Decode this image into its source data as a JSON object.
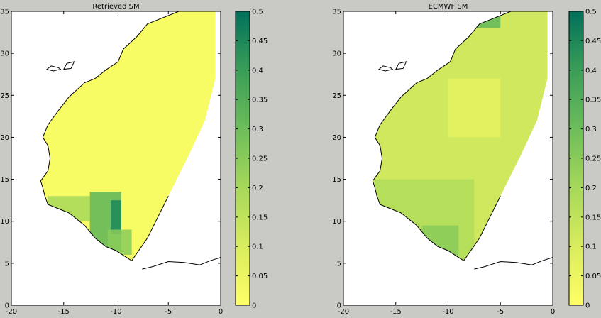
{
  "figure": {
    "background": "#c9cac5",
    "colormap": [
      "#ffff66",
      "#d9ec5e",
      "#a6d85a",
      "#6dbd5a",
      "#3a9e58",
      "#00705a"
    ]
  },
  "chart_data": [
    {
      "type": "heatmap",
      "title": "Retrieved SM",
      "xlim": [
        -20,
        0
      ],
      "ylim": [
        0,
        35
      ],
      "xticks": [
        -20,
        -15,
        -10,
        -5,
        0
      ],
      "yticks": [
        0,
        5,
        10,
        15,
        20,
        25,
        30,
        35
      ],
      "colorbar": {
        "min": 0,
        "max": 0.5,
        "ticks": [
          0,
          0.05,
          0.1,
          0.15,
          0.2,
          0.25,
          0.3,
          0.35,
          0.4,
          0.45,
          0.5
        ]
      },
      "coverage_value": 0.02,
      "regions": [
        {
          "lon": [
            -12.5,
            -9.5
          ],
          "lat": [
            6.5,
            13.5
          ],
          "value": 0.33
        },
        {
          "lon": [
            -16.5,
            -12.5
          ],
          "lat": [
            10,
            13
          ],
          "value": 0.2
        },
        {
          "lon": [
            -10.5,
            -9.5
          ],
          "lat": [
            8.5,
            12.5
          ],
          "value": 0.45
        },
        {
          "lon": [
            -10.8,
            -8.5
          ],
          "lat": [
            6,
            9
          ],
          "value": 0.25
        }
      ]
    },
    {
      "type": "heatmap",
      "title": "ECMWF SM",
      "xlim": [
        -20,
        0
      ],
      "ylim": [
        0,
        35
      ],
      "xticks": [
        -20,
        -15,
        -10,
        -5,
        0
      ],
      "yticks": [
        0,
        5,
        10,
        15,
        20,
        25,
        30,
        35
      ],
      "colorbar": {
        "min": 0,
        "max": 0.5,
        "ticks": [
          0,
          0.05,
          0.1,
          0.15,
          0.2,
          0.25,
          0.3,
          0.35,
          0.4,
          0.45,
          0.5
        ]
      },
      "coverage_value": 0.12,
      "regions": [
        {
          "lon": [
            -17,
            -7.5
          ],
          "lat": [
            5,
            15
          ],
          "value": 0.18
        },
        {
          "lon": [
            -12.5,
            -9
          ],
          "lat": [
            5.5,
            9.5
          ],
          "value": 0.25
        },
        {
          "lon": [
            -10,
            -5
          ],
          "lat": [
            20,
            27
          ],
          "value": 0.07
        },
        {
          "lon": [
            -8,
            -5
          ],
          "lat": [
            33,
            35
          ],
          "value": 0.32
        }
      ]
    }
  ]
}
